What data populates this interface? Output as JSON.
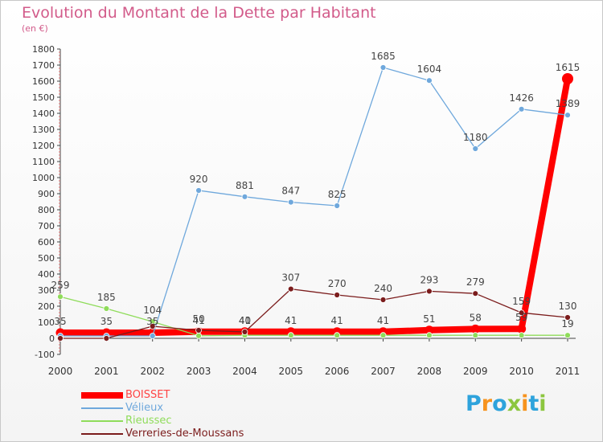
{
  "chart_data": {
    "type": "line",
    "title": "Evolution du Montant de la Dette par Habitant",
    "subtitle": "(en €)",
    "x": [
      "2000",
      "2001",
      "2002",
      "2003",
      "2004",
      "2005",
      "2006",
      "2007",
      "2008",
      "2009",
      "2010",
      "2011"
    ],
    "ylim": [
      -100,
      1800
    ],
    "yticks": [
      -100,
      0,
      100,
      200,
      300,
      400,
      500,
      600,
      700,
      800,
      900,
      1000,
      1100,
      1200,
      1300,
      1400,
      1500,
      1600,
      1700,
      1800
    ],
    "grid": false,
    "legend_position": "bottom-left",
    "series": [
      {
        "name": "BOISSET",
        "color": "#ff0000",
        "values": [
          35,
          35,
          35,
          41,
          41,
          41,
          41,
          41,
          51,
          58,
          59,
          1615
        ],
        "labels": [
          "35",
          "35",
          "35",
          "41",
          "41",
          "41",
          "41",
          "41",
          "51",
          "58",
          "59",
          "1615"
        ]
      },
      {
        "name": "Vélieux",
        "color": "#6fa8dc",
        "values": [
          15,
          15,
          15,
          920,
          881,
          847,
          825,
          1685,
          1604,
          1180,
          1426,
          1389
        ],
        "labels": [
          "",
          "",
          "",
          "920",
          "881",
          "847",
          "825",
          "1685",
          "1604",
          "1180",
          "1426",
          "1389"
        ]
      },
      {
        "name": "Rieussec",
        "color": "#8fdc5a",
        "values": [
          259,
          185,
          104,
          16,
          19,
          19,
          19,
          19,
          19,
          19,
          19,
          19
        ],
        "labels": [
          "259",
          "185",
          "104",
          "",
          "",
          "",
          "",
          "",
          "",
          "",
          "",
          "19"
        ]
      },
      {
        "name": "Verreries-de-Moussans",
        "color": "#7b1c1c",
        "values": [
          0,
          0,
          75,
          50,
          40,
          307,
          270,
          240,
          293,
          279,
          159,
          130
        ],
        "labels": [
          "",
          "",
          "",
          "50",
          "40",
          "307",
          "270",
          "240",
          "293",
          "279",
          "159",
          "130"
        ]
      }
    ]
  },
  "logo": {
    "letters": [
      "P",
      "r",
      "o",
      "x",
      "i",
      "t",
      "i"
    ],
    "colors": [
      "#2ea3dc",
      "#f7931e",
      "#2ea3dc",
      "#8cc63f",
      "#f7931e",
      "#2ea3dc",
      "#8cc63f"
    ]
  }
}
